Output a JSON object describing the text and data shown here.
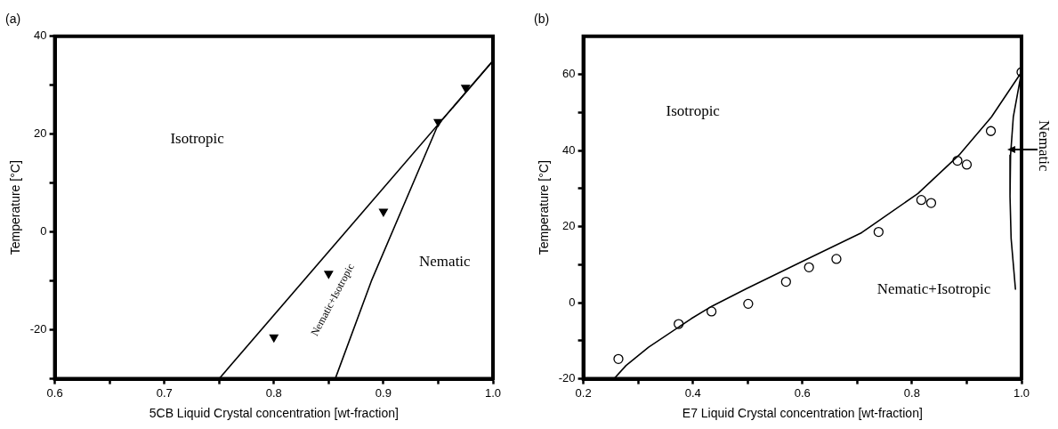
{
  "chart_data": [
    {
      "type": "scatter",
      "title": "(a)",
      "xlabel": "5CB Liquid Crystal concentration [wt-fraction]",
      "ylabel": "Temperature [°C]",
      "xlim": [
        0.6,
        1.0
      ],
      "ylim": [
        -30,
        40
      ],
      "xticks": [
        0.6,
        {
          "value": 0.65,
          "label": null
        },
        0.7,
        {
          "value": 0.75,
          "label": null
        },
        0.8,
        {
          "value": 0.85,
          "label": null
        },
        0.9,
        {
          "value": 0.95,
          "label": null
        },
        {
          "value": 1.0,
          "label": "1.0"
        }
      ],
      "yticks": [
        {
          "value": -30,
          "label": null
        },
        -20,
        {
          "value": -10,
          "label": null
        },
        0,
        {
          "value": 10,
          "label": null
        },
        20,
        {
          "value": 30,
          "label": null
        },
        40
      ],
      "grid": false,
      "legend": false,
      "series": [
        {
          "type": "scatter",
          "marker": "triangle",
          "color": "#000000",
          "x": [
            0.8,
            0.85,
            0.9,
            0.95,
            0.975
          ],
          "values": [
            -21.5,
            -8.5,
            4.2,
            22.5,
            29.5
          ]
        },
        {
          "type": "line",
          "marker": "none",
          "color": "#000000",
          "x": [
            0.75,
            1.0
          ],
          "values": [
            -30,
            35
          ]
        },
        {
          "type": "line",
          "marker": "none",
          "color": "#000000",
          "x": [
            0.856,
            0.889,
            0.95,
            1.0
          ],
          "values": [
            -30,
            -10,
            22,
            35
          ]
        }
      ],
      "annotations": [
        "Isotropic",
        "Nematic",
        "Nematic+Isotropic"
      ]
    },
    {
      "type": "scatter",
      "title": "(b)",
      "xlabel": "E7 Liquid Crystal concentration [wt-fraction]",
      "ylabel": "Temperature [°C]",
      "xlim": [
        0.2,
        1.0
      ],
      "ylim": [
        -20,
        70
      ],
      "xticks": [
        0.2,
        {
          "value": 0.3,
          "label": null
        },
        0.4,
        {
          "value": 0.5,
          "label": null
        },
        0.6,
        {
          "value": 0.7,
          "label": null
        },
        0.8,
        {
          "value": 0.9,
          "label": null
        },
        {
          "value": 1.0,
          "label": "1.0"
        }
      ],
      "yticks": [
        -20,
        {
          "value": -10,
          "label": null
        },
        0,
        {
          "value": 10,
          "label": null
        },
        20,
        {
          "value": 30,
          "label": null
        },
        40,
        {
          "value": 50,
          "label": null
        },
        60
      ],
      "grid": false,
      "legend": false,
      "series": [
        {
          "type": "scatter",
          "marker": "circle",
          "color": "#000000",
          "x": [
            0.264,
            0.374,
            0.434,
            0.501,
            0.57,
            0.612,
            0.662,
            0.739,
            0.817,
            0.835,
            0.883,
            0.9,
            0.944,
            1.0
          ],
          "values": [
            -14.8,
            -5.6,
            -2.3,
            -0.3,
            5.5,
            9.3,
            11.5,
            18.6,
            27.0,
            26.2,
            37.3,
            36.3,
            45.1,
            60.6
          ]
        },
        {
          "type": "line",
          "marker": "none",
          "color": "#000000",
          "x": [
            0.256,
            0.278,
            0.319,
            0.397,
            0.435,
            0.498,
            0.598,
            0.708,
            0.811,
            0.886,
            0.945,
            1.0
          ],
          "values": [
            -20,
            -16.5,
            -11.7,
            -4.2,
            -0.9,
            3.7,
            10.7,
            18.4,
            28.7,
            38.8,
            48.8,
            60.6
          ]
        },
        {
          "type": "line",
          "marker": "none",
          "color": "#000000",
          "x": [
            1.0,
            0.985,
            0.98,
            0.979,
            0.981,
            0.989
          ],
          "values": [
            60.6,
            48.8,
            38.8,
            27.9,
            16.9,
            3.4
          ]
        }
      ],
      "annotations": [
        "Isotropic",
        "Nematic+Isotropic",
        "Nematic"
      ]
    }
  ]
}
